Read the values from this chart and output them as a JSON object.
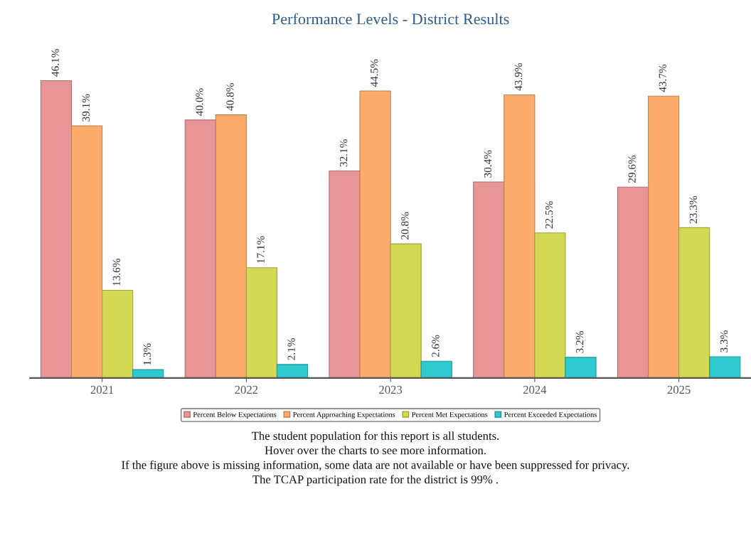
{
  "chart_data": {
    "type": "bar",
    "title": "Performance Levels - District Results",
    "categories": [
      "2021",
      "2022",
      "2023",
      "2024",
      "2025"
    ],
    "series": [
      {
        "name": "Percent Below Expectations",
        "color": "#e89597",
        "values": [
          46.1,
          40.0,
          32.1,
          30.4,
          29.6
        ],
        "value_labels": [
          "46.1%",
          "40.0%",
          "32.1%",
          "30.4%",
          "29.6%"
        ]
      },
      {
        "name": "Percent Approaching Expectations",
        "color": "#fdab6a",
        "values": [
          39.1,
          40.8,
          44.5,
          43.9,
          43.7
        ],
        "value_labels": [
          "39.1%",
          "40.8%",
          "44.5%",
          "43.9%",
          "43.7%"
        ]
      },
      {
        "name": "Percent Met Expectations",
        "color": "#d4d954",
        "values": [
          13.6,
          17.1,
          20.8,
          22.5,
          23.3
        ],
        "value_labels": [
          "13.6%",
          "17.1%",
          "20.8%",
          "22.5%",
          "23.3%"
        ]
      },
      {
        "name": "Percent Exceeded Expectations",
        "color": "#2ecacf",
        "values": [
          1.3,
          2.1,
          2.6,
          3.2,
          3.3
        ],
        "value_labels": [
          "1.3%",
          "2.1%",
          "2.6%",
          "3.2%",
          "3.3%"
        ]
      }
    ],
    "tick_labels": "x",
    "grid": false,
    "legend": "bottom",
    "annotations": [
      "The student population for this report is all students.",
      "Hover over the charts to see more information.",
      "If the figure above is missing information, some data are not available or have been suppressed for privacy.",
      "The TCAP participation rate for the district is 99% ."
    ]
  }
}
